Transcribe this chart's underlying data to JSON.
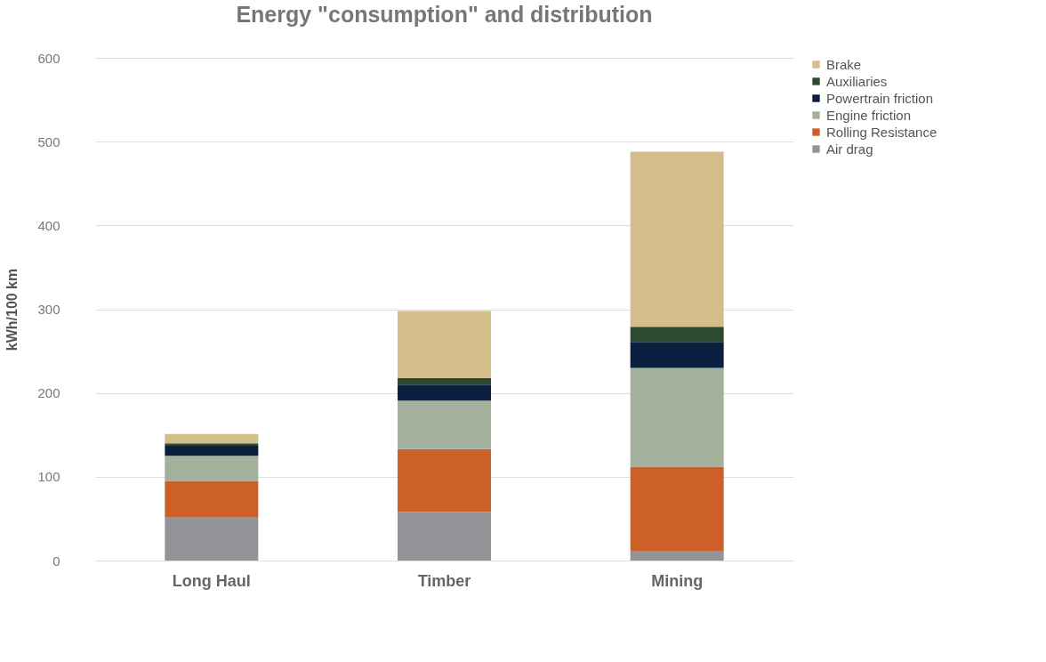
{
  "chart_data": {
    "type": "bar",
    "title": "Energy \"consumption\" and distribution",
    "ylabel": "kWh/100 km",
    "categories": [
      "Long Haul",
      "Timber",
      "Mining"
    ],
    "stacked": true,
    "series": [
      {
        "name": "Air drag",
        "color": "#939497",
        "values": [
          52,
          58,
          11
        ]
      },
      {
        "name": "Rolling Resistance",
        "color": "#cc6028",
        "values": [
          43,
          75,
          101
        ]
      },
      {
        "name": "Engine friction",
        "color": "#a2b09c",
        "values": [
          30,
          58,
          118
        ]
      },
      {
        "name": "Powertrain friction",
        "color": "#0b1f40",
        "values": [
          12,
          19,
          31
        ]
      },
      {
        "name": "Auxiliaries",
        "color": "#2d4a30",
        "values": [
          3,
          8,
          18
        ]
      },
      {
        "name": "Brake",
        "color": "#d3bd8a",
        "values": [
          11,
          80,
          209
        ]
      }
    ],
    "ylim": [
      0,
      600
    ],
    "yticks": [
      0,
      100,
      200,
      300,
      400,
      500,
      600
    ],
    "grid": "y",
    "legend": "right"
  }
}
